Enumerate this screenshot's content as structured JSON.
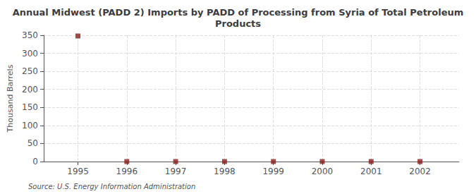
{
  "chart_data": {
    "type": "scatter",
    "title": "Annual Midwest (PADD 2) Imports by PADD of Processing from Syria of Total Petroleum\nProducts",
    "y_label": "Thousand Barrels",
    "annotation": "Source: U.S. Energy Information Administration",
    "x": [
      1995,
      1996,
      1997,
      1998,
      1999,
      2000,
      2001,
      2002
    ],
    "values": [
      348,
      0,
      0,
      0,
      0,
      0,
      0,
      0
    ],
    "color": "#8B1A1A",
    "marker": "square",
    "xlim": [
      1994.3,
      2002.8
    ],
    "xticks": [
      1995,
      1996,
      1997,
      1998,
      1999,
      2000,
      2001,
      2002
    ],
    "ylim": [
      0,
      350
    ],
    "yticks": [
      0,
      50,
      100,
      150,
      200,
      250,
      300,
      350
    ],
    "grid": true
  }
}
